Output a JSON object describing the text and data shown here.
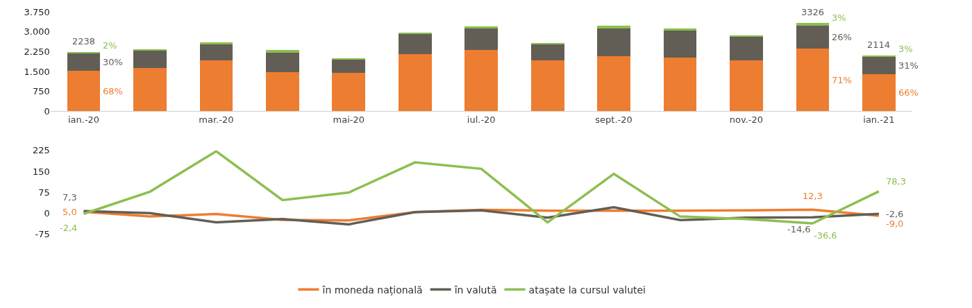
{
  "chart_data": [
    {
      "type": "bar",
      "stacked": true,
      "categories": [
        "ian.-20",
        null,
        "mar.-20",
        null,
        "mai-20",
        null,
        "iul.-20",
        null,
        "sept.-20",
        null,
        "nov.-20",
        null,
        "ian.-21"
      ],
      "series": [
        {
          "color": "#ed7d31",
          "values": [
            1522,
            1631,
            1913,
            1478,
            1446,
            2163,
            2304,
            1913,
            2087,
            2011,
            1913,
            2361,
            1395
          ]
        },
        {
          "color": "#635e55",
          "values": [
            671,
            663,
            598,
            718,
            500,
            750,
            827,
            620,
            1044,
            1043,
            913,
            865,
            655
          ]
        },
        {
          "color": "#8cbf4f",
          "values": [
            45,
            32,
            76,
            108,
            32,
            44,
            65,
            43,
            108,
            77,
            44,
            100,
            64
          ]
        }
      ],
      "annotations": [
        "68%",
        "30%",
        "2%",
        "71%",
        "26%",
        "3%",
        "66%",
        "31%",
        "3%"
      ],
      "totals": [
        "2238",
        null,
        null,
        null,
        null,
        null,
        null,
        null,
        null,
        null,
        null,
        "3326",
        "2114"
      ],
      "ylim": [
        0,
        3750
      ],
      "yticks": [
        0,
        750,
        {
          "value": 1500,
          "label": "1.500"
        },
        {
          "value": 2250,
          "label": "2.250"
        },
        {
          "value": 3000,
          "label": "3.000"
        },
        {
          "value": 3750,
          "label": "3.750"
        }
      ]
    },
    {
      "type": "line",
      "legend": "bottom",
      "tick_labels": "y",
      "marker": "none",
      "line_style": "solid",
      "categories": [
        null,
        null,
        null,
        null,
        null,
        null,
        null,
        null,
        null,
        null,
        null,
        null,
        null
      ],
      "series": [
        {
          "name": "în moneda națională",
          "color": "#ed7d31",
          "values": [
            5.0,
            -12,
            -3,
            -24,
            -26,
            4,
            12,
            9,
            9,
            9,
            10,
            12.3,
            -9.0
          ],
          "value_labels": [
            "5,0",
            null,
            null,
            null,
            null,
            null,
            null,
            null,
            null,
            null,
            null,
            "12,3",
            "-9,0"
          ]
        },
        {
          "name": "în valută",
          "color": "#635e55",
          "values": [
            7.3,
            0,
            -33,
            -21,
            -40,
            4,
            10,
            -16,
            21,
            -25,
            -16,
            -14.6,
            -2.6
          ],
          "value_labels": [
            "7,3",
            null,
            null,
            null,
            null,
            null,
            null,
            null,
            null,
            null,
            null,
            "-14,6",
            "-2,6"
          ]
        },
        {
          "name": "atașate la cursul valutei",
          "color": "#8cbf4f",
          "values": [
            -2.4,
            77,
            222,
            47,
            74,
            182,
            159,
            -33,
            141,
            -12,
            -21,
            -36.6,
            78.3
          ],
          "value_labels": [
            "-2,4",
            null,
            null,
            null,
            null,
            null,
            null,
            null,
            null,
            null,
            null,
            "-36,6",
            "78,3"
          ]
        }
      ],
      "ylim": [
        -75,
        225
      ],
      "yticks": [
        -75,
        0,
        75,
        150,
        225
      ]
    }
  ]
}
